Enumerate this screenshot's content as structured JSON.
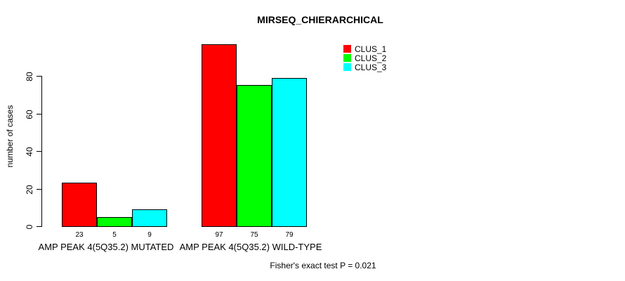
{
  "chart_data": {
    "type": "bar",
    "title": "MIRSEQ_CHIERARCHICAL",
    "ylabel": "number of cases",
    "xlabel": "",
    "categories": [
      "AMP PEAK 4(5Q35.2) MUTATED",
      "AMP PEAK 4(5Q35.2) WILD-TYPE"
    ],
    "series": [
      {
        "name": "CLUS_1",
        "color": "#FF0000",
        "values": [
          23,
          97
        ]
      },
      {
        "name": "CLUS_2",
        "color": "#00FF00",
        "values": [
          5,
          75
        ]
      },
      {
        "name": "CLUS_3",
        "color": "#00FFFF",
        "values": [
          9,
          79
        ]
      }
    ],
    "yticks": [
      0,
      20,
      40,
      60,
      80
    ],
    "ylim": [
      0,
      80
    ],
    "grid": false,
    "legend_position": "inside-top-right",
    "annotation": "Fisher's exact test P = 0.021",
    "background": "#FFFFFF",
    "axis_color": "#000000"
  }
}
